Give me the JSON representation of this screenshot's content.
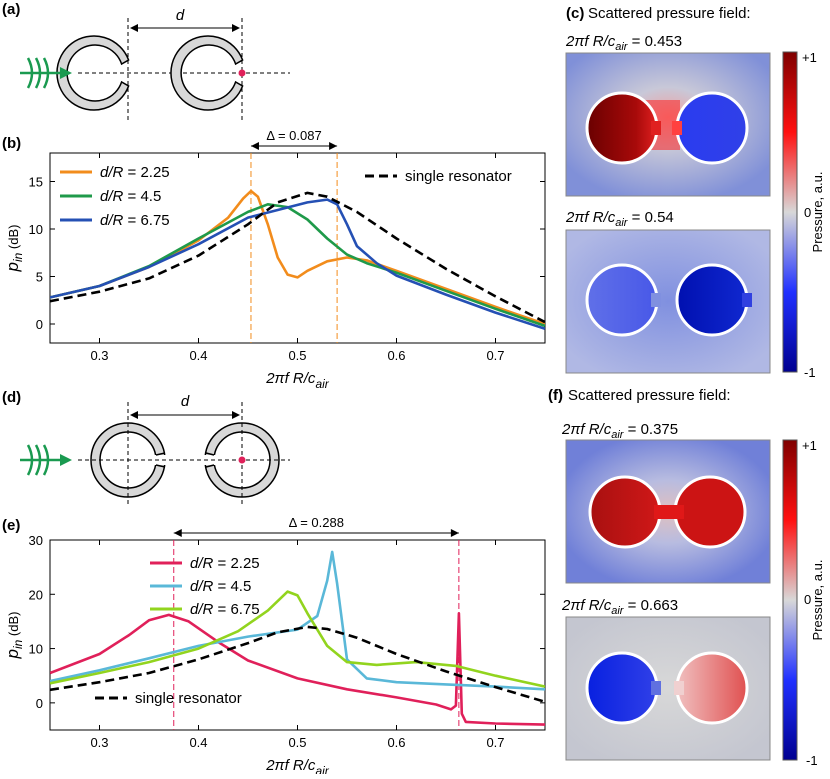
{
  "panels": {
    "a": "(a)",
    "b": "(b)",
    "c": "(c)",
    "d": "(d)",
    "e": "(e)",
    "f": "(f)"
  },
  "schematic": {
    "distance_label": "d"
  },
  "field_c": {
    "title": "Scattered pressure field:",
    "sub1_prefix": "2πf R/c",
    "sub1_sub": "air",
    "sub1_value": " = 0.453",
    "sub2_prefix": "2πf R/c",
    "sub2_sub": "air",
    "sub2_value": " = 0.54",
    "colorbar_max": "+1",
    "colorbar_mid": "0",
    "colorbar_min": "-1",
    "colorbar_label": "Pressure, a.u."
  },
  "field_f": {
    "title": "Scattered pressure field:",
    "sub1_prefix": "2πf R/c",
    "sub1_sub": "air",
    "sub1_value": " = 0.375",
    "sub2_prefix": "2πf R/c",
    "sub2_sub": "air",
    "sub2_value": " = 0.663",
    "colorbar_max": "+1",
    "colorbar_mid": "0",
    "colorbar_min": "-1",
    "colorbar_label": "Pressure, a.u."
  },
  "colors": {
    "orange": "#f28c1c",
    "green": "#1f9a4a",
    "blue": "#2550b4",
    "crimson": "#e0205a",
    "cyan": "#5ab8d8",
    "lime": "#92d41e",
    "arrow": "#1a9a50",
    "dot": "#e0205a"
  },
  "chart_data": [
    {
      "type": "line",
      "panel": "(b)",
      "xlabel_main": "2πf R/c",
      "xlabel_sub": "air",
      "ylabel_main": "p",
      "ylabel_sub": "in",
      "ylabel_unit": " (dB)",
      "xlim": [
        0.25,
        0.75
      ],
      "ylim": [
        -2,
        18
      ],
      "xticks": [
        0.3,
        0.4,
        0.5,
        0.6,
        0.7
      ],
      "yticks": [
        0,
        5,
        10,
        15
      ],
      "annotation": "Δ = 0.087",
      "vlines": [
        0.453,
        0.54
      ],
      "series": [
        {
          "name": "d/R = 2.25",
          "label_main": "d/R",
          "label_value": " = 2.25",
          "color": "#f28c1c",
          "dash": false,
          "points": [
            [
              0.25,
              2.8
            ],
            [
              0.3,
              4.0
            ],
            [
              0.35,
              6.0
            ],
            [
              0.4,
              8.8
            ],
            [
              0.43,
              11.2
            ],
            [
              0.445,
              13.2
            ],
            [
              0.453,
              14.0
            ],
            [
              0.46,
              13.4
            ],
            [
              0.47,
              10.5
            ],
            [
              0.48,
              7.0
            ],
            [
              0.49,
              5.2
            ],
            [
              0.5,
              4.9
            ],
            [
              0.51,
              5.6
            ],
            [
              0.53,
              6.6
            ],
            [
              0.55,
              7.0
            ],
            [
              0.57,
              6.7
            ],
            [
              0.6,
              5.6
            ],
            [
              0.65,
              3.7
            ],
            [
              0.7,
              1.8
            ],
            [
              0.75,
              0.0
            ]
          ]
        },
        {
          "name": "d/R = 4.5",
          "label_main": "d/R",
          "label_value": " = 4.5",
          "color": "#1f9a4a",
          "dash": false,
          "points": [
            [
              0.25,
              2.8
            ],
            [
              0.3,
              4.0
            ],
            [
              0.35,
              6.1
            ],
            [
              0.4,
              9.0
            ],
            [
              0.45,
              11.8
            ],
            [
              0.47,
              12.6
            ],
            [
              0.49,
              12.3
            ],
            [
              0.51,
              11.0
            ],
            [
              0.53,
              9.0
            ],
            [
              0.55,
              7.3
            ],
            [
              0.57,
              6.4
            ],
            [
              0.6,
              5.4
            ],
            [
              0.65,
              3.5
            ],
            [
              0.7,
              1.6
            ],
            [
              0.75,
              -0.2
            ]
          ]
        },
        {
          "name": "d/R = 6.75",
          "label_main": "d/R",
          "label_value": " = 6.75",
          "color": "#2550b4",
          "dash": false,
          "points": [
            [
              0.25,
              2.8
            ],
            [
              0.3,
              4.0
            ],
            [
              0.35,
              6.0
            ],
            [
              0.4,
              8.4
            ],
            [
              0.45,
              11.2
            ],
            [
              0.48,
              12.0
            ],
            [
              0.51,
              12.8
            ],
            [
              0.53,
              13.1
            ],
            [
              0.54,
              12.6
            ],
            [
              0.55,
              10.5
            ],
            [
              0.56,
              8.2
            ],
            [
              0.58,
              6.4
            ],
            [
              0.6,
              5.1
            ],
            [
              0.65,
              3.1
            ],
            [
              0.7,
              1.2
            ],
            [
              0.75,
              -0.5
            ]
          ]
        },
        {
          "name": "single resonator",
          "label_main": "single resonator",
          "label_value": "",
          "color": "#000000",
          "dash": true,
          "points": [
            [
              0.25,
              2.4
            ],
            [
              0.3,
              3.4
            ],
            [
              0.35,
              4.8
            ],
            [
              0.4,
              7.2
            ],
            [
              0.45,
              10.5
            ],
            [
              0.48,
              12.8
            ],
            [
              0.51,
              13.8
            ],
            [
              0.53,
              13.4
            ],
            [
              0.56,
              11.8
            ],
            [
              0.6,
              9.0
            ],
            [
              0.65,
              5.8
            ],
            [
              0.7,
              2.9
            ],
            [
              0.75,
              0.2
            ]
          ]
        }
      ]
    },
    {
      "type": "line",
      "panel": "(e)",
      "xlabel_main": "2πf R/c",
      "xlabel_sub": "air",
      "ylabel_main": "p",
      "ylabel_sub": "in",
      "ylabel_unit": " (dB)",
      "xlim": [
        0.25,
        0.75
      ],
      "ylim": [
        -5,
        30
      ],
      "xticks": [
        0.3,
        0.4,
        0.5,
        0.6,
        0.7
      ],
      "yticks": [
        0,
        10,
        20,
        30
      ],
      "annotation": "Δ = 0.288",
      "vlines": [
        0.375,
        0.663
      ],
      "series": [
        {
          "name": "d/R = 2.25",
          "label_main": "d/R",
          "label_value": " = 2.25",
          "color": "#e0205a",
          "dash": false,
          "points": [
            [
              0.25,
              5.5
            ],
            [
              0.3,
              9.0
            ],
            [
              0.33,
              12.5
            ],
            [
              0.35,
              15.2
            ],
            [
              0.37,
              16.2
            ],
            [
              0.39,
              15.0
            ],
            [
              0.42,
              11.2
            ],
            [
              0.45,
              7.8
            ],
            [
              0.5,
              4.5
            ],
            [
              0.55,
              2.5
            ],
            [
              0.6,
              1.0
            ],
            [
              0.64,
              -0.3
            ],
            [
              0.655,
              -1.2
            ],
            [
              0.66,
              -0.5
            ],
            [
              0.663,
              16.5
            ],
            [
              0.666,
              -2.0
            ],
            [
              0.67,
              -3.5
            ],
            [
              0.7,
              -3.8
            ],
            [
              0.75,
              -4.0
            ]
          ]
        },
        {
          "name": "d/R = 4.5",
          "label_main": "d/R",
          "label_value": " = 4.5",
          "color": "#5ab8d8",
          "dash": false,
          "points": [
            [
              0.25,
              4.0
            ],
            [
              0.3,
              6.0
            ],
            [
              0.35,
              8.2
            ],
            [
              0.4,
              10.5
            ],
            [
              0.45,
              12.2
            ],
            [
              0.5,
              13.5
            ],
            [
              0.52,
              16.0
            ],
            [
              0.53,
              22.5
            ],
            [
              0.535,
              27.8
            ],
            [
              0.54,
              22.0
            ],
            [
              0.55,
              8.0
            ],
            [
              0.57,
              4.5
            ],
            [
              0.6,
              3.8
            ],
            [
              0.65,
              3.4
            ],
            [
              0.7,
              3.0
            ],
            [
              0.75,
              2.5
            ]
          ]
        },
        {
          "name": "d/R = 6.75",
          "label_main": "d/R",
          "label_value": " = 6.75",
          "color": "#92d41e",
          "dash": false,
          "points": [
            [
              0.25,
              3.6
            ],
            [
              0.3,
              5.5
            ],
            [
              0.35,
              7.5
            ],
            [
              0.4,
              10.0
            ],
            [
              0.44,
              13.2
            ],
            [
              0.47,
              17.0
            ],
            [
              0.49,
              20.5
            ],
            [
              0.5,
              19.8
            ],
            [
              0.51,
              16.5
            ],
            [
              0.53,
              10.5
            ],
            [
              0.55,
              7.5
            ],
            [
              0.58,
              7.0
            ],
            [
              0.62,
              7.5
            ],
            [
              0.66,
              6.8
            ],
            [
              0.7,
              5.0
            ],
            [
              0.75,
              3.0
            ]
          ]
        },
        {
          "name": "single resonator",
          "label_main": "single resonator",
          "label_value": "",
          "color": "#000000",
          "dash": true,
          "points": [
            [
              0.25,
              2.4
            ],
            [
              0.3,
              3.8
            ],
            [
              0.35,
              5.5
            ],
            [
              0.4,
              8.0
            ],
            [
              0.45,
              11.0
            ],
            [
              0.48,
              13.0
            ],
            [
              0.51,
              14.0
            ],
            [
              0.53,
              13.6
            ],
            [
              0.56,
              12.0
            ],
            [
              0.6,
              9.0
            ],
            [
              0.65,
              5.8
            ],
            [
              0.7,
              2.9
            ],
            [
              0.75,
              0.2
            ]
          ]
        }
      ]
    }
  ]
}
